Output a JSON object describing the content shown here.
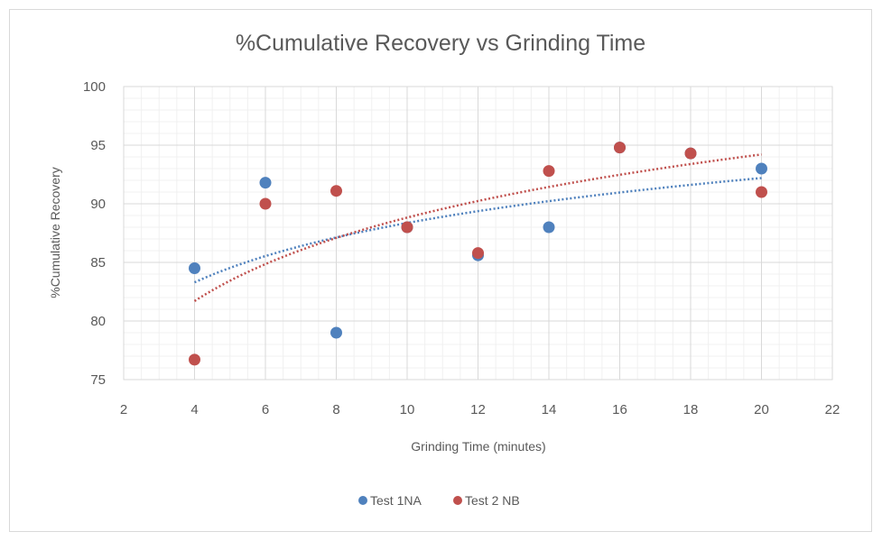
{
  "chart_data": {
    "type": "scatter",
    "title": "%Cumulative Recovery vs Grinding Time",
    "xlabel": "Grinding Time (minutes)",
    "ylabel": "%Cumulative Recovery",
    "xlim": [
      2,
      22
    ],
    "ylim": [
      75,
      100
    ],
    "x_ticks": [
      2,
      4,
      6,
      8,
      10,
      12,
      14,
      16,
      18,
      20,
      22
    ],
    "y_ticks": [
      75,
      80,
      85,
      90,
      95,
      100
    ],
    "x_minor_step": 0.5,
    "y_minor_step": 1,
    "grid": true,
    "legend_position": "bottom",
    "series": [
      {
        "name": "Test 1NA",
        "color": "#4f81bd",
        "x": [
          4,
          6,
          8,
          10,
          12,
          14,
          16,
          18,
          20
        ],
        "y": [
          84.5,
          91.8,
          79.0,
          88.0,
          85.6,
          88.0,
          94.8,
          94.3,
          93.0
        ],
        "trendline": {
          "type": "logarithmic",
          "a": 5.53,
          "b": 75.63,
          "x_range": [
            4,
            20
          ],
          "style": "dotted"
        }
      },
      {
        "name": "Test 2 NB",
        "color": "#c0504d",
        "x": [
          4,
          6,
          8,
          10,
          12,
          14,
          16,
          18,
          20
        ],
        "y": [
          76.7,
          90.0,
          91.1,
          88.0,
          85.8,
          92.8,
          94.8,
          94.3,
          91.0
        ],
        "trendline": {
          "type": "logarithmic",
          "a": 7.77,
          "b": 70.93,
          "x_range": [
            4,
            20
          ],
          "style": "dotted"
        }
      }
    ]
  },
  "colors": {
    "text": "#595959",
    "major_grid": "#d9d9d9",
    "minor_grid": "#f0f0f0"
  }
}
